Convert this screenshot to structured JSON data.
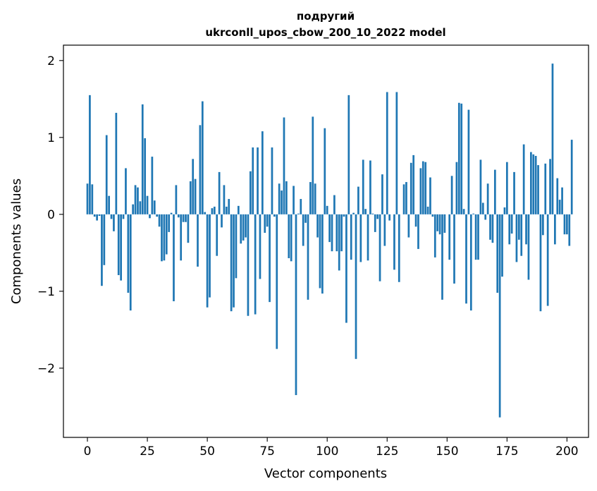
{
  "chart_data": {
    "type": "bar",
    "title_line1": "подругий",
    "title_line2": "ukrconll_upos_cbow_200_10_2022 model",
    "xlabel": "Vector components",
    "ylabel": "Components values",
    "xlim": [
      -10,
      209
    ],
    "ylim": [
      -2.9,
      2.2
    ],
    "x_ticks": [
      0,
      25,
      50,
      75,
      100,
      125,
      150,
      175,
      200
    ],
    "x_tick_labels": [
      "0",
      "25",
      "50",
      "75",
      "100",
      "125",
      "150",
      "175",
      "200"
    ],
    "y_ticks": [
      -2,
      -1,
      0,
      1,
      2
    ],
    "y_tick_labels": [
      "−2",
      "−1",
      "0",
      "1",
      "2"
    ],
    "bar_color": "#1f77b4",
    "values": [
      0.4,
      1.55,
      0.39,
      -0.03,
      -0.08,
      -0.02,
      -0.93,
      -0.66,
      1.03,
      0.24,
      -0.06,
      -0.22,
      1.32,
      -0.79,
      -0.86,
      -0.06,
      0.6,
      -1.02,
      -1.25,
      0.13,
      0.38,
      0.35,
      0.17,
      1.43,
      0.99,
      0.24,
      -0.05,
      0.75,
      0.18,
      -0.03,
      -0.16,
      -0.61,
      -0.6,
      -0.52,
      -0.23,
      0.02,
      -1.13,
      0.38,
      -0.04,
      -0.6,
      -0.1,
      -0.1,
      -0.37,
      0.43,
      0.72,
      0.46,
      -0.68,
      1.16,
      1.47,
      0.03,
      -1.21,
      -1.08,
      0.08,
      0.1,
      -0.54,
      0.55,
      -0.17,
      0.38,
      0.1,
      0.2,
      -1.26,
      -1.21,
      -0.83,
      0.11,
      -0.38,
      -0.34,
      -0.3,
      -1.32,
      0.56,
      0.87,
      -1.3,
      0.87,
      -0.84,
      1.08,
      -0.24,
      -0.16,
      -1.14,
      0.87,
      -0.03,
      -1.75,
      0.4,
      0.31,
      1.26,
      0.43,
      -0.57,
      -0.61,
      0.37,
      -2.35,
      0.01,
      0.2,
      -0.41,
      -0.11,
      -1.11,
      0.42,
      1.27,
      0.4,
      -0.3,
      -0.96,
      -1.03,
      1.12,
      0.11,
      -0.36,
      -0.48,
      0.25,
      -0.48,
      -0.73,
      -0.48,
      -0.03,
      -1.41,
      1.55,
      -0.59,
      0.02,
      -1.88,
      0.36,
      -0.62,
      0.71,
      0.07,
      -0.6,
      0.7,
      0.01,
      -0.23,
      -0.06,
      -0.87,
      0.52,
      -0.41,
      1.59,
      -0.08,
      0.0,
      -0.72,
      1.59,
      -0.88,
      0.0,
      0.39,
      0.42,
      -0.3,
      0.67,
      0.77,
      -0.16,
      -0.45,
      0.6,
      0.69,
      0.68,
      0.1,
      0.48,
      -0.03,
      -0.56,
      -0.22,
      -0.26,
      -1.11,
      -0.24,
      0.0,
      -0.59,
      0.5,
      -0.9,
      0.68,
      1.45,
      1.44,
      0.07,
      -1.16,
      1.36,
      -1.25,
      0.01,
      -0.59,
      -0.59,
      0.71,
      0.15,
      -0.07,
      0.4,
      -0.33,
      -0.37,
      0.58,
      -1.02,
      -2.64,
      -0.81,
      0.09,
      0.68,
      -0.39,
      -0.25,
      0.55,
      -0.62,
      -0.33,
      -0.54,
      0.91,
      -0.39,
      -0.85,
      0.81,
      0.78,
      0.76,
      0.64,
      -1.26,
      -0.27,
      0.66,
      -1.19,
      0.72,
      1.96,
      -0.39,
      0.47,
      0.19,
      0.35,
      -0.26,
      -0.26,
      -0.41,
      0.97
    ]
  }
}
